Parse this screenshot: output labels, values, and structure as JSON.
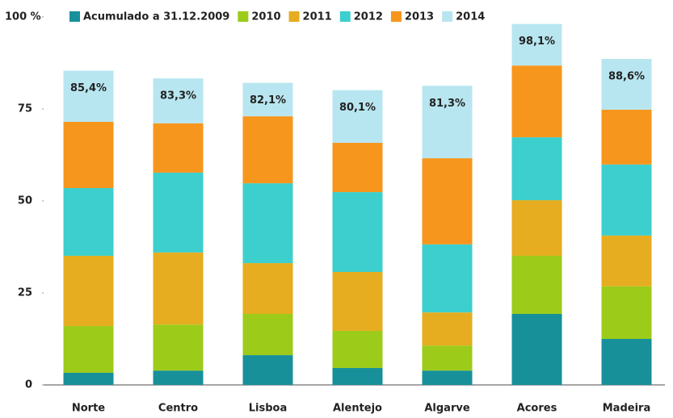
{
  "chart_data": {
    "type": "stacked_bar",
    "categories": [
      "Norte",
      "Centro",
      "Lisboa",
      "Alentejo",
      "Algarve",
      "Acores",
      "Madeira"
    ],
    "series": [
      {
        "name": "Acumulado a 31.12.2009",
        "color": "#17909a",
        "values": [
          3.3,
          3.9,
          8.1,
          4.6,
          3.9,
          19.3,
          12.5
        ]
      },
      {
        "name": "2010",
        "color": "#9dcb1a",
        "values": [
          12.7,
          12.5,
          11.2,
          10.1,
          6.8,
          15.8,
          14.3
        ]
      },
      {
        "name": "2011",
        "color": "#e5ad1f",
        "values": [
          19.1,
          19.6,
          13.8,
          16.0,
          9.0,
          15.1,
          13.8
        ]
      },
      {
        "name": "2012",
        "color": "#3ccfce",
        "values": [
          18.4,
          21.7,
          21.7,
          21.7,
          18.5,
          17.1,
          19.3
        ]
      },
      {
        "name": "2013",
        "color": "#f7961c",
        "values": [
          18.0,
          13.4,
          18.2,
          13.4,
          23.4,
          19.5,
          14.9
        ]
      },
      {
        "name": "2014",
        "color": "#b8e6f0",
        "values": [
          13.9,
          12.2,
          9.1,
          14.3,
          19.7,
          11.3,
          13.8
        ]
      }
    ],
    "totals": [
      85.4,
      83.3,
      82.1,
      80.1,
      81.3,
      98.1,
      88.6
    ],
    "total_labels": [
      "85,4%",
      "83,3%",
      "82,1%",
      "80,1%",
      "81,3%",
      "98,1%",
      "88,6%"
    ],
    "ylim": [
      0,
      100
    ],
    "yticks": [
      0,
      25,
      50,
      75,
      {
        "value": 100,
        "label": "100 %"
      }
    ],
    "legend": "top"
  }
}
